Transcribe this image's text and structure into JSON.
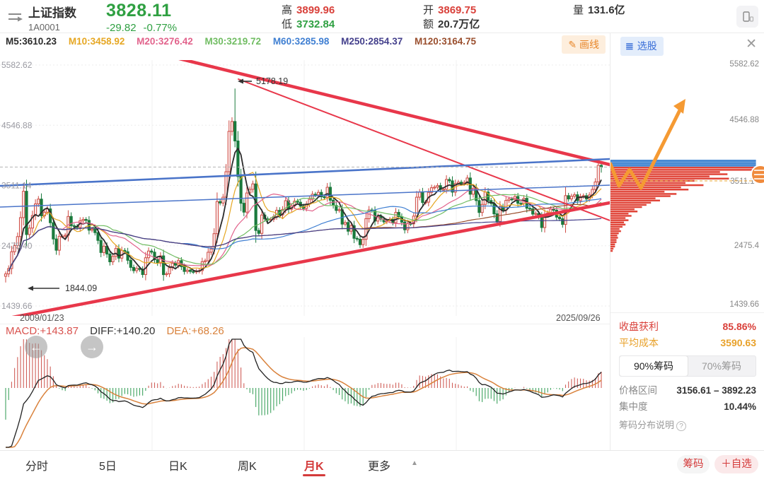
{
  "header": {
    "name": "上证指数",
    "code": "1A0001",
    "price": "3828.11",
    "change": "-29.82",
    "change_pct": "-0.77%",
    "high_label": "高",
    "high": "3899.96",
    "low_label": "低",
    "low": "3732.84",
    "open_label": "开",
    "open": "3869.75",
    "amount_label": "额",
    "amount": "20.7万亿",
    "vol_label": "量",
    "volume": "131.6亿"
  },
  "ma_row": {
    "items": [
      {
        "label": "M5:3610.23",
        "color": "#2b2b2b"
      },
      {
        "label": "M10:3458.92",
        "color": "#e6a723"
      },
      {
        "label": "M20:3276.42",
        "color": "#e2638c"
      },
      {
        "label": "M30:3219.72",
        "color": "#71bd63"
      },
      {
        "label": "M60:3285.98",
        "color": "#3f7fd2"
      },
      {
        "label": "M250:2854.37",
        "color": "#44408c"
      },
      {
        "label": "M120:3164.75",
        "color": "#9a4f2e"
      }
    ],
    "draw_button": "画线"
  },
  "chart": {
    "axis_left": [
      "5582.62",
      "4546.88",
      "3511.14",
      "2475.40",
      "1439.66"
    ],
    "date_start": "2009/01/23",
    "date_end": "2025/09/26",
    "peak_annotation": "5178.19",
    "low_annotation": "1844.09"
  },
  "macd_panel": {
    "macd": "MACD:+143.87",
    "diff": "DIFF:+140.20",
    "dea": "DEA:+68.26"
  },
  "chart_data": {
    "type": "candlestick",
    "period": "monthly",
    "x_range": [
      "2009/01/23",
      "2025/09/26"
    ],
    "y_axis": {
      "max": 5582.62,
      "min": 1439.66
    },
    "current_price": 3828.11,
    "first_open": 1950,
    "closes": [
      1991,
      2083,
      2373,
      2478,
      2633,
      2959,
      3412,
      2668,
      2779,
      2996,
      3195,
      3277,
      2989,
      3052,
      3109,
      2871,
      2592,
      2398,
      2638,
      2639,
      2656,
      2979,
      2820,
      2808,
      2790,
      2905,
      2928,
      2911,
      2743,
      2762,
      2701,
      2567,
      2359,
      2468,
      2333,
      2199,
      2293,
      2428,
      2262,
      2396,
      2372,
      2225,
      2103,
      2047,
      2086,
      2068,
      1980,
      2269,
      2385,
      2365,
      2236,
      2177,
      2301,
      1979,
      1993,
      2098,
      2175,
      2141,
      2220,
      2116,
      2033,
      2056,
      2033,
      2026,
      2039,
      2048,
      2201,
      2217,
      2364,
      2420,
      2683,
      3235,
      3210,
      3310,
      3748,
      4442,
      4612,
      4277,
      3664,
      3206,
      3053,
      3383,
      3445,
      3539,
      2738,
      2688,
      3004,
      2938,
      2917,
      2930,
      2979,
      3085,
      3005,
      3100,
      3250,
      3104,
      3159,
      3242,
      3223,
      3155,
      3117,
      3192,
      3273,
      3361,
      3349,
      3393,
      3317,
      3307,
      3481,
      3259,
      3169,
      3082,
      3095,
      2847,
      2876,
      2725,
      2821,
      2603,
      2588,
      2494,
      2585,
      2941,
      3091,
      3078,
      2899,
      2979,
      2933,
      2886,
      2905,
      2929,
      2872,
      3050,
      2976,
      2880,
      2750,
      2860,
      2852,
      2985,
      3310,
      3396,
      3218,
      3225,
      3392,
      3473,
      3483,
      3509,
      3442,
      3447,
      3615,
      3591,
      3397,
      3544,
      3568,
      3547,
      3564,
      3640,
      3361,
      3462,
      3252,
      3047,
      3186,
      3399,
      3253,
      3202,
      3024,
      2893,
      3151,
      3089,
      3255,
      3280,
      3273,
      3323,
      3205,
      3202,
      3291,
      3120,
      3110,
      3019,
      3030,
      2975,
      2788,
      3015,
      3041,
      3104,
      3087,
      2967,
      2939,
      2842,
      3337,
      3280,
      3326,
      3352,
      3251,
      3321,
      3336,
      3279,
      3347,
      3444,
      3573,
      3858,
      3828
    ],
    "wick_overrides": {
      "0": {
        "low": 1844.09
      },
      "77": {
        "high": 5178.19
      },
      "200": {
        "high": 3899.96,
        "low": 3732.84
      }
    },
    "ma_lines": [
      {
        "period": 5,
        "color": "#2b2b2b",
        "w": 1.8
      },
      {
        "period": 10,
        "color": "#e6a723",
        "w": 1.2
      },
      {
        "period": 20,
        "color": "#e2638c",
        "w": 1.2
      },
      {
        "period": 30,
        "color": "#71bd63",
        "w": 1.2
      },
      {
        "period": 60,
        "color": "#3f7fd2",
        "w": 1.2
      },
      {
        "period": 120,
        "color": "#9a4f2e",
        "w": 1.2
      },
      {
        "period": 250,
        "color": "#44408c",
        "w": 1.2
      }
    ],
    "trend_lines": [
      {
        "pts": [
          148,
          -28,
          862,
          148
        ],
        "w": 4.5,
        "color": "#e8374a"
      },
      {
        "pts": [
          337,
          27,
          862,
          227
        ],
        "w": 2,
        "color": "#e8374a"
      },
      {
        "pts": [
          18,
          364,
          862,
          202
        ],
        "w": 4.5,
        "color": "#e8374a"
      },
      {
        "pts": [
          0,
          178,
          862,
          140
        ],
        "w": 2.6,
        "color": "#4a74c9"
      },
      {
        "pts": [
          0,
          208,
          862,
          177
        ],
        "w": 1.5,
        "color": "#4a74c9"
      }
    ],
    "macd_seed": {
      "ema12": 1750,
      "ema26": 2500,
      "dea": -500
    }
  },
  "right_panel": {
    "select_button": "选股",
    "axis": [
      "5582.62",
      "4546.88",
      "3511.14",
      "2475.4",
      "1439.66"
    ],
    "avg_cost_value": 3590.63,
    "chip": {
      "blue_len": 0.97,
      "red_rows": [
        0.97,
        0.97,
        0.73,
        0.78,
        0.66,
        0.79,
        0.56,
        0.5,
        0.62,
        0.47,
        0.52,
        0.36,
        0.44,
        0.4,
        0.3,
        0.33,
        0.27,
        0.24,
        0.21,
        0.16,
        0.18,
        0.12,
        0.14,
        0.1,
        0.12,
        0.09,
        0.1,
        0.08,
        0.06,
        0.07,
        0.055,
        0.045,
        0.05,
        0.04,
        0.04,
        0.03,
        0.03,
        0.02,
        0.015
      ],
      "blue_color": "#4a8bd4",
      "red_color": "#e04438"
    },
    "profit_label": "收盘获利",
    "profit": "85.86%",
    "avg_label": "平均成本",
    "avg": "3590.63",
    "tab_90": "90%筹码",
    "tab_70": "70%筹码",
    "range_label": "价格区间",
    "range": "3156.61 – 3892.23",
    "conc_label": "集中度",
    "conc": "10.44%",
    "note": "筹码分布说明"
  },
  "tabs": {
    "items": [
      "分时",
      "5日",
      "日K",
      "周K",
      "月K",
      "更多"
    ],
    "active": "月K",
    "chip_btn": "筹码",
    "watch_btn": "＋自选"
  }
}
